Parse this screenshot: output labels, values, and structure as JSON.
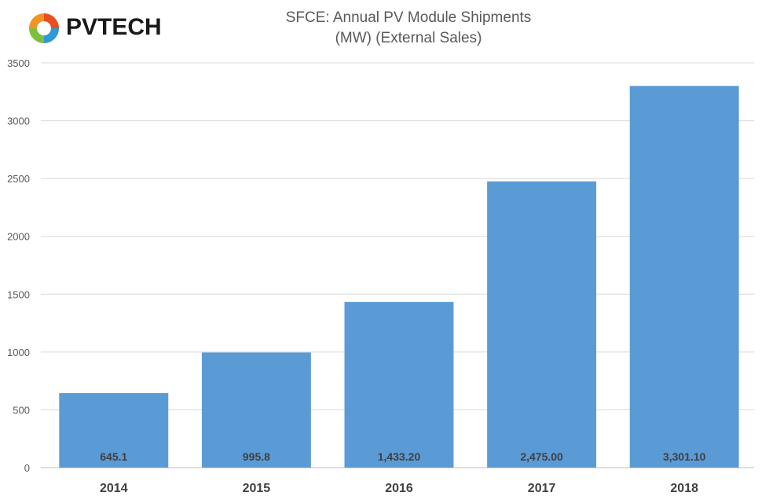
{
  "logo": {
    "text": "PVTECH"
  },
  "title_lines": [
    "SFCE: Annual PV Module Shipments",
    "(MW) (External Sales)"
  ],
  "colors": {
    "bar": "#5b9bd5",
    "grid": "#d9d9d9",
    "axis_text": "#595959",
    "label": "#404040"
  },
  "chart_data": {
    "type": "bar",
    "title": "SFCE: Annual PV Module Shipments (MW) (External Sales)",
    "categories": [
      "2014",
      "2015",
      "2016",
      "2017",
      "2018"
    ],
    "values": [
      645.1,
      995.8,
      1433.2,
      2475.0,
      3301.1
    ],
    "data_labels": [
      "645.1",
      "995.8",
      "1,433.20",
      "2,475.00",
      "3,301.10"
    ],
    "yticks": [
      "0",
      "500",
      "1000",
      "1500",
      "2000",
      "2500",
      "3000",
      "3500"
    ],
    "ylim": [
      0,
      3500
    ],
    "grid": true,
    "legend": "none",
    "xlabel": "",
    "ylabel": ""
  }
}
